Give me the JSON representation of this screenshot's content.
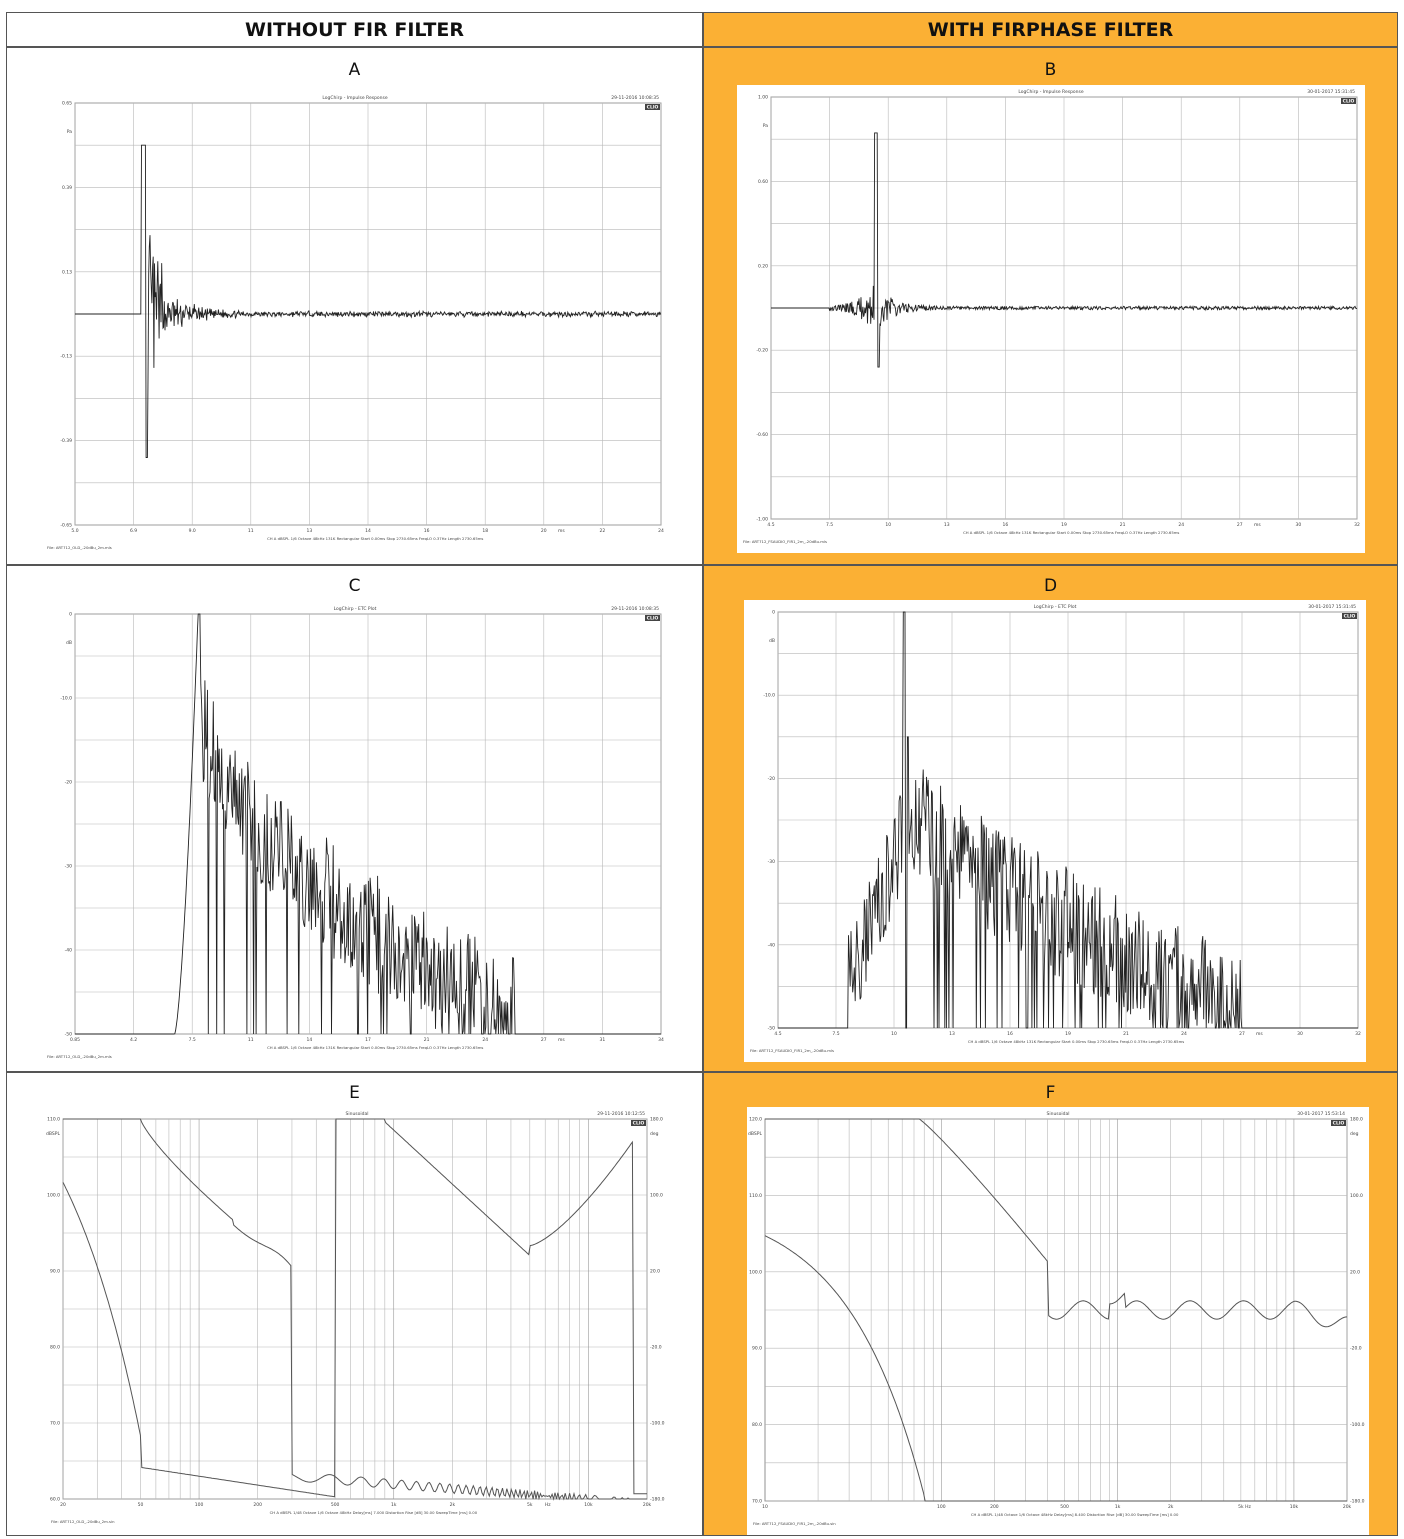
{
  "header": {
    "left": "WITHOUT FIR FILTER",
    "right": "WITH FIRPHASE FILTER"
  },
  "colors": {
    "orange": "#fbb034",
    "trace": "#222222",
    "grid": "#b8b8b8"
  },
  "chart_data": [
    {
      "id": "A",
      "type": "line",
      "title": "LogChirp - Impulse Response",
      "timestamp": "29-11-2016 10:08:35",
      "ylabel": "Pa",
      "xlabel": "ms",
      "y_ticks": [
        "0.65",
        "0.39",
        "0.13",
        "-0.13",
        "-0.39",
        "-0.65"
      ],
      "x_ticks": [
        "5.0",
        "6.9",
        "9.0",
        "11",
        "13",
        "14",
        "16",
        "18",
        "20",
        "22",
        "24"
      ],
      "badge": "CLIO",
      "footer_file": "File: ART712_OLD_-20dBu_2m.mls",
      "footer_params": "CH A dBSPL 1/6 Octave 48kHz 131K Rectangular Start 0.00ms Stop 2730.65ms FreqLO 0.37Hz Length 2730.65ms",
      "trace_kind": "impulse_old"
    },
    {
      "id": "B",
      "type": "line",
      "title": "LogChirp - Impulse Response",
      "timestamp": "30-01-2017 15:31:45",
      "ylabel": "Pa",
      "xlabel": "ms",
      "y_ticks": [
        "1.00",
        "0.60",
        "0.20",
        "-0.20",
        "-0.60",
        "-1.00"
      ],
      "x_ticks": [
        "4.5",
        "7.5",
        "10",
        "13",
        "16",
        "19",
        "21",
        "24",
        "27",
        "30",
        "32"
      ],
      "badge": "CLIO",
      "footer_file": "File: ART712_FSAUDIO_FIR1_2m_-20dBu.mls",
      "footer_params": "CH A dBSPL 1/6 Octave 48kHz 131K Rectangular Start 0.00ms Stop 2730.65ms FreqLO 0.37Hz Length 2730.65ms",
      "trace_kind": "impulse_fir"
    },
    {
      "id": "C",
      "type": "line",
      "title": "LogChirp - ETC Plot",
      "timestamp": "29-11-2016 10:08:35",
      "ylabel": "dB",
      "xlabel": "ms",
      "y_ticks": [
        "0",
        "-10.0",
        "-20",
        "-30",
        "-40",
        "-50"
      ],
      "x_ticks": [
        "0.85",
        "4.2",
        "7.5",
        "11",
        "14",
        "17",
        "21",
        "24",
        "27",
        "31",
        "34"
      ],
      "badge": "CLIO",
      "footer_file": "File: ART712_OLD_-20dBu_2m.mls",
      "footer_params": "CH A dBSPL 1/6 Octave 48kHz 131K Rectangular Start 0.00ms Stop 2730.65ms FreqLO 0.37Hz Length 2730.65ms",
      "trace_kind": "etc_old"
    },
    {
      "id": "D",
      "type": "line",
      "title": "LogChirp - ETC Plot",
      "timestamp": "30-01-2017 15:31:45",
      "ylabel": "dB",
      "xlabel": "ms",
      "y_ticks": [
        "0",
        "-10.0",
        "-20",
        "-30",
        "-40",
        "-50"
      ],
      "x_ticks": [
        "4.5",
        "7.5",
        "10",
        "13",
        "16",
        "19",
        "21",
        "24",
        "27",
        "30",
        "32"
      ],
      "badge": "CLIO",
      "footer_file": "File: ART712_FSAUDIO_FIR1_2m_-20dBu.mls",
      "footer_params": "CH A dBSPL 1/6 Octave 48kHz 131K Rectangular Start 0.00ms Stop 2730.65ms FreqLO 0.37Hz Length 2730.65ms",
      "trace_kind": "etc_fir"
    },
    {
      "id": "E",
      "type": "line",
      "title": "Sinusoidal",
      "timestamp": "29-11-2016 10:12:55",
      "ylabel": "dBSPL",
      "ylabel_right": "deg",
      "xlabel": "Hz",
      "y_ticks": [
        "110.0",
        "100.0",
        "90.0",
        "80.0",
        "70.0",
        "60.0"
      ],
      "y_ticks_right": [
        "180.0",
        "100.0",
        "20.0",
        "-20.0",
        "-100.0",
        "-180.0"
      ],
      "x_ticks": [
        "20",
        "50",
        "100",
        "200",
        "500",
        "1k",
        "2k",
        "5k",
        "10k",
        "20k"
      ],
      "badge": "CLIO",
      "footer_file": "File: ART712_OLD_-20dBu_2m.sin",
      "footer_params": "CH A dBSPL 1/48 Octave 1/6 Octave 48kHz Delay[ms] 7.000 Distortion Rise [dB] 30.00 SweepTime [ms] 0.00",
      "trace_kind": "freq_old"
    },
    {
      "id": "F",
      "type": "line",
      "title": "Sinusoidal",
      "timestamp": "30-01-2017 15:53:14",
      "ylabel": "dBSPL",
      "ylabel_right": "deg",
      "xlabel": "Hz",
      "y_ticks": [
        "120.0",
        "110.0",
        "100.0",
        "90.0",
        "80.0",
        "70.0"
      ],
      "y_ticks_right": [
        "180.0",
        "100.0",
        "20.0",
        "-20.0",
        "-100.0",
        "-180.0"
      ],
      "x_ticks": [
        "10",
        "100",
        "200",
        "500",
        "1k",
        "2k",
        "5k",
        "10k",
        "20k"
      ],
      "badge": "CLIO",
      "footer_file": "File: ART712_FSAUDIO_FIR1_2m_-20dBu.sin",
      "footer_params": "CH A dBSPL 1/48 Octave 1/6 Octave 48kHz Delay[ms] 8.400 Distortion Rise [dB] 30.00 SweepTime [ms] 0.00",
      "trace_kind": "freq_fir"
    }
  ]
}
